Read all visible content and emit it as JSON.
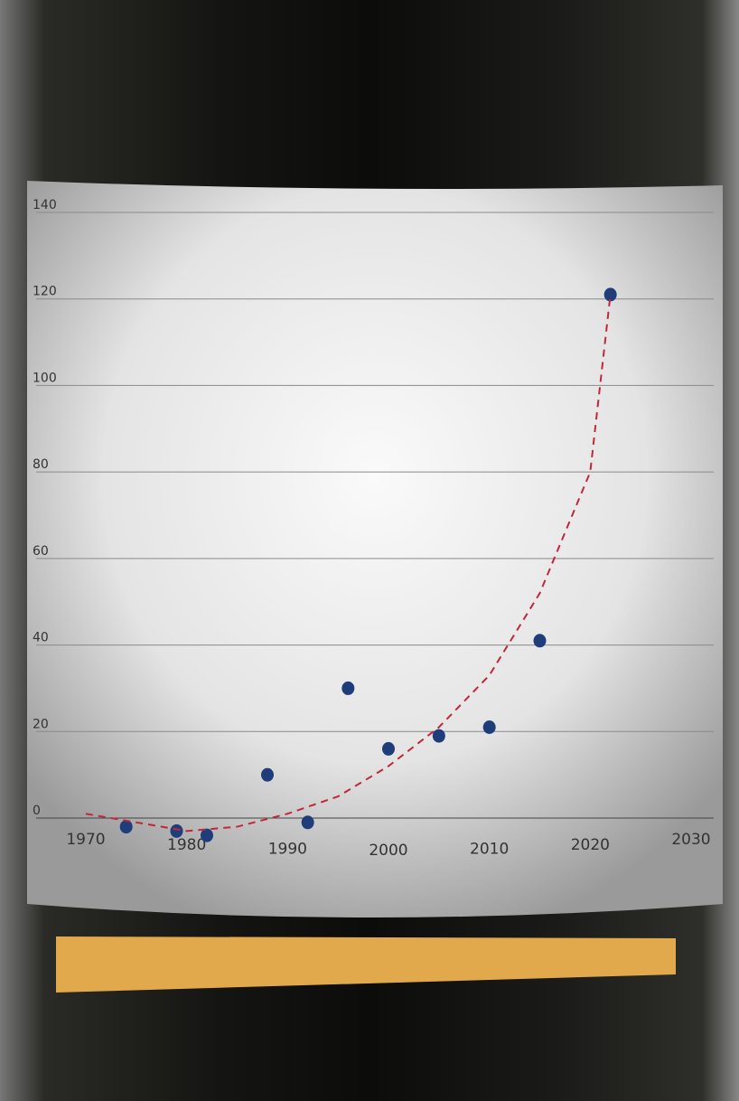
{
  "chart_data": {
    "type": "scatter",
    "xlim": [
      1970,
      2030
    ],
    "xticks": [
      1970,
      1980,
      1990,
      2000,
      2010,
      2020,
      2030
    ],
    "ylim": [
      0,
      140
    ],
    "yticks": [
      0,
      20,
      40,
      60,
      80,
      100,
      120,
      140
    ],
    "grid": true,
    "series": [
      {
        "color": "#1f3d7a",
        "x": [
          1974,
          1979,
          1982,
          1988,
          1992,
          1996,
          2000,
          2005,
          2010,
          2015,
          2022
        ],
        "values": [
          -2,
          -3,
          -4,
          10,
          -1,
          30,
          16,
          19,
          21,
          41,
          121
        ]
      },
      {
        "color": "#c0283a",
        "line": "dashed",
        "x": [
          1970,
          1975,
          1980,
          1985,
          1990,
          1995,
          2000,
          2005,
          2010,
          2015,
          2020,
          2022
        ],
        "values": [
          1,
          -1,
          -3,
          -2,
          1,
          5,
          12,
          21,
          33,
          52,
          80,
          121
        ]
      }
    ]
  }
}
